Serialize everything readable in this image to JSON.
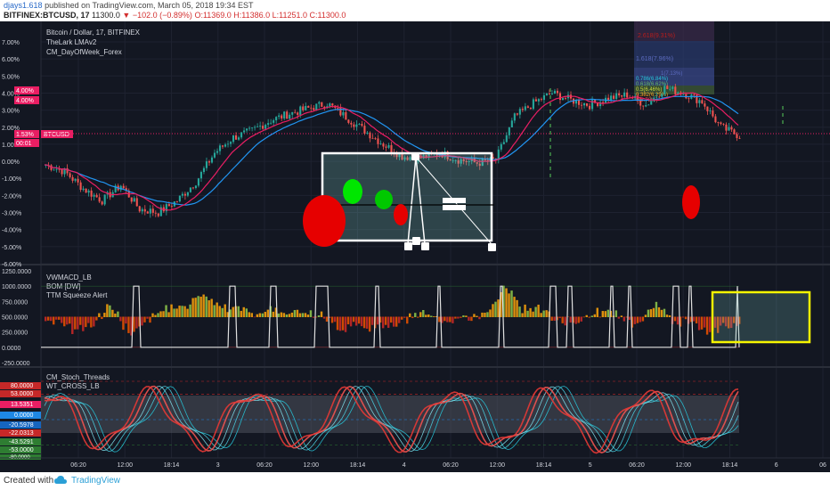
{
  "header": {
    "user": "djays1.618",
    "published": "published on TradingView.com, March 05, 2018 19:34 EST",
    "symbol": "BITFINEX:BTCUSD, 17",
    "last": "11300.0",
    "change": "−102.0 (−0.89%)",
    "ohlc": "O:11369.0 H:11386.0 L:11251.0 C:11300.0"
  },
  "legend_main": [
    "Bitcoin / Dollar, 17, BITFINEX",
    "TheLark LMAv2",
    "CM_DayOfWeek_Forex"
  ],
  "legend_pane2": [
    "VWMACD_LB",
    "BOM [DW]",
    "TTM Squeeze Alert"
  ],
  "legend_pane3": [
    "CM_Stoch_Threads",
    "WT_CROSS_LB"
  ],
  "footer": {
    "created": "Created with",
    "brand": "TradingView"
  },
  "price_badges": [
    {
      "text": "4.00%",
      "color": "#e91e63"
    },
    {
      "text": "4.00%",
      "color": "#e91e63"
    },
    {
      "text": "1.53%",
      "color": "#e91e63"
    },
    {
      "text": "00:01",
      "color": "#e91e63"
    },
    {
      "text": "BTCUSD",
      "color": "#e91e63"
    }
  ],
  "fib_labels": [
    "2.618(9.31%)",
    "1.618(7.96%)",
    "1(7.13%)",
    "0.786(6.84%)",
    "0.618(6.62%)",
    "0.5(6.46%)",
    "0.382(6.29%)",
    "0(5.78%)"
  ],
  "pane3_badges": [
    {
      "text": "80.0000",
      "color": "#c62828"
    },
    {
      "text": "53.0000",
      "color": "#c62828"
    },
    {
      "text": "13.5351",
      "color": "#e91e63"
    },
    {
      "text": "0.0000",
      "color": "#1e88e5"
    },
    {
      "text": "-20.5978",
      "color": "#1565c0"
    },
    {
      "text": "-22.0313",
      "color": "#c62828"
    },
    {
      "text": "-43.5291",
      "color": "#2e7d32"
    },
    {
      "text": "-53.0000",
      "color": "#2e7d32"
    },
    {
      "text": "-80.0000",
      "color": "#2e7d32"
    }
  ],
  "colors": {
    "bg": "#131722",
    "up": "#26a69a",
    "down": "#ef5350",
    "accent": "#e91e63",
    "ma_blue": "#2196f3",
    "ma_pink": "#e91e63"
  },
  "chart_data": [
    {
      "type": "candlestick",
      "title": "Bitcoin / Dollar, 17, BITFINEX",
      "ylabel": "%",
      "yticks": [
        "7.00%",
        "6.00%",
        "5.00%",
        "4.00%",
        "3.00%",
        "2.00%",
        "1.00%",
        "0.00%",
        "-1.00%",
        "-2.00%",
        "-3.00%",
        "-4.00%",
        "-5.00%",
        "-6.00%"
      ],
      "ylim": [
        -6,
        7.6
      ],
      "x_labels": [
        "06:20",
        "12:00",
        "18:14",
        "3",
        "06:20",
        "12:00",
        "18:14",
        "4",
        "06:20",
        "12:00",
        "18:14",
        "5",
        "06:20",
        "12:00",
        "18:14",
        "6",
        "06"
      ],
      "path_pct": [
        -0.2,
        -0.6,
        -1.6,
        -2.3,
        -1.4,
        -2.8,
        -3.0,
        -2.3,
        -1.2,
        0.5,
        1.4,
        1.8,
        2.4,
        2.8,
        3.1,
        3.4,
        2.6,
        1.8,
        1.0,
        0.3,
        0.2,
        0.5,
        0.1,
        -0.1,
        0.1,
        2.6,
        3.4,
        4.0,
        3.6,
        3.3,
        3.7,
        3.9,
        3.3,
        4.3,
        4.0,
        3.5,
        2.0,
        1.5
      ]
    },
    {
      "type": "bar",
      "title": "VWMACD_LB / BOM [DW] / TTM Squeeze Alert",
      "yticks": [
        "1250.0000",
        "1000.0000",
        "750.0000",
        "500.0000",
        "250.0000",
        "0.0000",
        "-250.0000"
      ],
      "ylim": [
        -300,
        1300
      ]
    },
    {
      "type": "line",
      "title": "CM_Stoch_Threads / WT_CROSS_LB",
      "ylim": [
        -90,
        90
      ]
    }
  ]
}
